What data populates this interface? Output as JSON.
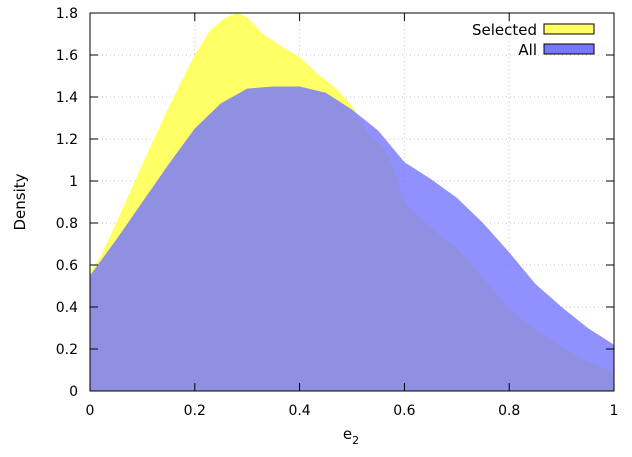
{
  "chart_data": {
    "type": "area",
    "title": "",
    "xlabel": "e",
    "xlabel_subscript": "2",
    "ylabel": "Density",
    "xlim": [
      0,
      1
    ],
    "ylim": [
      0,
      1.8
    ],
    "grid": true,
    "legend_position": "top-right",
    "x_ticks": [
      "0",
      "0.2",
      "0.4",
      "0.6",
      "0.8",
      "1"
    ],
    "y_ticks": [
      "0",
      "0.2",
      "0.4",
      "0.6",
      "0.8",
      "1",
      "1.2",
      "1.4",
      "1.6",
      "1.8"
    ],
    "series": [
      {
        "name": "Selected",
        "color": "#ffff66",
        "x": [
          0,
          0.02,
          0.05,
          0.1,
          0.15,
          0.2,
          0.23,
          0.26,
          0.28,
          0.3,
          0.33,
          0.36,
          0.4,
          0.43,
          0.47,
          0.5,
          0.53,
          0.56,
          0.58,
          0.6,
          0.63,
          0.67,
          0.7,
          0.75,
          0.8,
          0.85,
          0.9,
          0.95,
          1.0
        ],
        "values": [
          0.57,
          0.64,
          0.8,
          1.08,
          1.35,
          1.6,
          1.72,
          1.78,
          1.8,
          1.78,
          1.7,
          1.65,
          1.59,
          1.52,
          1.44,
          1.36,
          1.23,
          1.16,
          1.06,
          0.9,
          0.82,
          0.74,
          0.68,
          0.54,
          0.39,
          0.29,
          0.21,
          0.14,
          0.09
        ]
      },
      {
        "name": "All",
        "color": "#7777ff",
        "x": [
          0,
          0.05,
          0.1,
          0.15,
          0.2,
          0.25,
          0.3,
          0.35,
          0.4,
          0.45,
          0.5,
          0.55,
          0.6,
          0.65,
          0.7,
          0.75,
          0.8,
          0.85,
          0.9,
          0.95,
          1.0
        ],
        "values": [
          0.55,
          0.72,
          0.9,
          1.08,
          1.25,
          1.37,
          1.44,
          1.45,
          1.45,
          1.42,
          1.34,
          1.24,
          1.09,
          1.01,
          0.92,
          0.8,
          0.66,
          0.51,
          0.4,
          0.3,
          0.22
        ]
      }
    ]
  }
}
